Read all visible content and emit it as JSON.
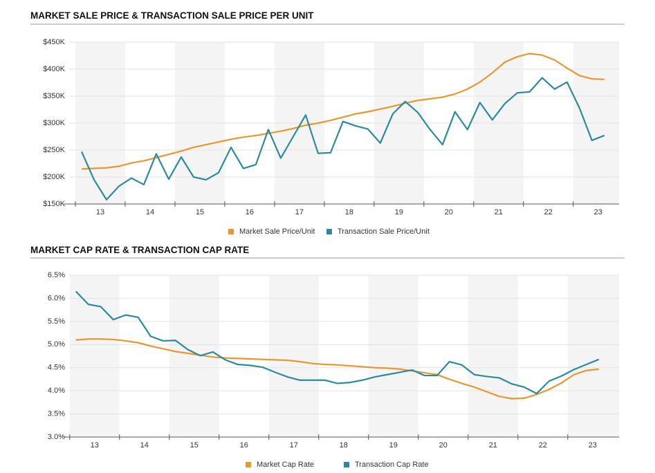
{
  "chart_data": [
    {
      "type": "line",
      "title": "MARKET SALE PRICE & TRANSACTION SALE PRICE PER UNIT",
      "x": [
        13.125,
        13.375,
        13.625,
        13.875,
        14.125,
        14.375,
        14.625,
        14.875,
        15.125,
        15.375,
        15.625,
        15.875,
        16.125,
        16.375,
        16.625,
        16.875,
        17.125,
        17.375,
        17.625,
        17.875,
        18.125,
        18.375,
        18.625,
        18.875,
        19.125,
        19.375,
        19.625,
        19.875,
        20.125,
        20.375,
        20.625,
        20.875,
        21.125,
        21.375,
        21.625,
        21.875,
        22.125,
        22.375,
        22.625,
        22.875,
        23.125,
        23.375,
        23.625
      ],
      "xlim": [
        12.875,
        23.92
      ],
      "xticks": [
        13,
        14,
        15,
        16,
        17,
        18,
        19,
        20,
        21,
        22,
        23
      ],
      "ylim": [
        150000,
        450000
      ],
      "yticks": [
        {
          "value": 150000,
          "label": "$150K"
        },
        {
          "value": 200000,
          "label": "$200K"
        },
        {
          "value": 250000,
          "label": "$250K"
        },
        {
          "value": 300000,
          "label": "$300K"
        },
        {
          "value": 350000,
          "label": "$350K"
        },
        {
          "value": 400000,
          "label": "$400K"
        },
        {
          "value": 450000,
          "label": "$450K"
        }
      ],
      "grid": true,
      "series": [
        {
          "name": "Market Sale Price/Unit",
          "color": "#e8962e",
          "values": [
            215000,
            216000,
            217000,
            220000,
            226000,
            230000,
            236000,
            242000,
            248000,
            255000,
            260000,
            265000,
            270000,
            274000,
            277000,
            281000,
            285000,
            290000,
            296000,
            300000,
            305000,
            311000,
            317000,
            321000,
            326000,
            331000,
            337000,
            342000,
            345000,
            348000,
            354000,
            363000,
            376000,
            393000,
            413000,
            423000,
            429000,
            426000,
            417000,
            402000,
            388000,
            382000,
            381000
          ]
        },
        {
          "name": "Transaction Sale Price/Unit",
          "color": "#2a8a9e",
          "values": [
            247000,
            195000,
            158000,
            183000,
            198000,
            186000,
            243000,
            196000,
            237000,
            200000,
            195000,
            208000,
            255000,
            216000,
            223000,
            288000,
            235000,
            275000,
            315000,
            244000,
            245000,
            303000,
            295000,
            289000,
            263000,
            317000,
            340000,
            320000,
            288000,
            260000,
            321000,
            288000,
            338000,
            306000,
            336000,
            356000,
            358000,
            384000,
            363000,
            376000,
            328000,
            268000,
            277000
          ]
        }
      ]
    },
    {
      "type": "line",
      "title": "MARKET CAP RATE & TRANSACTION CAP RATE",
      "x": [
        13.125,
        13.375,
        13.625,
        13.875,
        14.125,
        14.375,
        14.625,
        14.875,
        15.125,
        15.375,
        15.625,
        15.875,
        16.125,
        16.375,
        16.625,
        16.875,
        17.125,
        17.375,
        17.625,
        17.875,
        18.125,
        18.375,
        18.625,
        18.875,
        19.125,
        19.375,
        19.625,
        19.875,
        20.125,
        20.375,
        20.625,
        20.875,
        21.125,
        21.375,
        21.625,
        21.875,
        22.125,
        22.375,
        22.625,
        22.875,
        23.125,
        23.375,
        23.625
      ],
      "xlim": [
        12.99,
        24.03
      ],
      "xticks": [
        13,
        14,
        15,
        16,
        17,
        18,
        19,
        20,
        21,
        22,
        23
      ],
      "ylim": [
        3.0,
        6.5
      ],
      "yticks": [
        {
          "value": 3.0,
          "label": "3.0%"
        },
        {
          "value": 3.5,
          "label": "3.5%"
        },
        {
          "value": 4.0,
          "label": "4.0%"
        },
        {
          "value": 4.5,
          "label": "4.5%"
        },
        {
          "value": 5.0,
          "label": "5.0%"
        },
        {
          "value": 5.5,
          "label": "5.5%"
        },
        {
          "value": 6.0,
          "label": "6.0%"
        },
        {
          "value": 6.5,
          "label": "6.5%"
        }
      ],
      "grid": true,
      "series": [
        {
          "name": "Market Cap Rate",
          "color": "#e8962e",
          "values": [
            5.1,
            5.12,
            5.12,
            5.11,
            5.08,
            5.04,
            4.97,
            4.91,
            4.85,
            4.81,
            4.77,
            4.73,
            4.71,
            4.7,
            4.69,
            4.68,
            4.67,
            4.66,
            4.63,
            4.59,
            4.57,
            4.56,
            4.54,
            4.52,
            4.5,
            4.49,
            4.47,
            4.43,
            4.39,
            4.35,
            4.25,
            4.16,
            4.08,
            3.98,
            3.88,
            3.83,
            3.84,
            3.92,
            4.03,
            4.17,
            4.35,
            4.44,
            4.47
          ]
        },
        {
          "name": "Transaction Cap Rate",
          "color": "#2a8a9e",
          "values": [
            6.15,
            5.87,
            5.82,
            5.54,
            5.64,
            5.59,
            5.18,
            5.08,
            5.09,
            4.89,
            4.76,
            4.84,
            4.67,
            4.57,
            4.55,
            4.51,
            4.4,
            4.3,
            4.23,
            4.23,
            4.23,
            4.16,
            4.18,
            4.23,
            4.3,
            4.35,
            4.4,
            4.45,
            4.33,
            4.33,
            4.63,
            4.56,
            4.35,
            4.31,
            4.28,
            4.15,
            4.08,
            3.94,
            4.21,
            4.32,
            4.46,
            4.57,
            4.68
          ]
        }
      ]
    }
  ]
}
